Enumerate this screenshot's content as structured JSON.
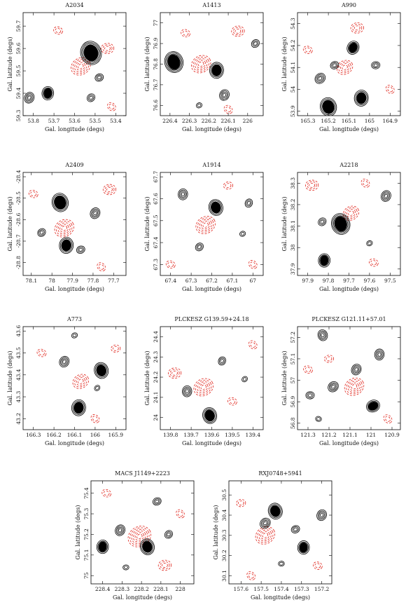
{
  "figure": {
    "colors": {
      "positive_contour": "#000000",
      "negative_contour": "#e0261d",
      "frame": "#000000"
    }
  },
  "chart_data": [
    {
      "type": "contour",
      "title": "A2034",
      "xlabel": "Gal. longitude (degs)",
      "ylabel": "Gal. latitude (degs)",
      "xticks": [
        "53.8",
        "53.7",
        "53.6",
        "53.5",
        "53.4"
      ],
      "yticks": [
        "59.3",
        "59.4",
        "59.5",
        "59.6",
        "59.7"
      ],
      "xlim": [
        53.85,
        53.35
      ],
      "ylim": [
        59.3,
        59.76
      ],
      "positive_peaks": [
        [
          53.52,
          59.58,
          9
        ],
        [
          53.73,
          59.4,
          5
        ],
        [
          53.82,
          59.38,
          4
        ],
        [
          53.52,
          59.38,
          3
        ],
        [
          53.48,
          59.47,
          3
        ]
      ],
      "negative_peaks": [
        [
          53.57,
          59.52,
          5
        ],
        [
          53.44,
          59.6,
          3
        ],
        [
          53.68,
          59.68,
          2
        ],
        [
          53.42,
          59.34,
          2
        ]
      ]
    },
    {
      "type": "contour",
      "title": "A1413",
      "xlabel": "Gal. longitude (degs)",
      "ylabel": "Gal. latitude (degs)",
      "xticks": [
        "226.4",
        "226.3",
        "226.2",
        "226.1",
        "226"
      ],
      "yticks": [
        "76.6",
        "76.7",
        "76.8",
        "76.9",
        "77"
      ],
      "xlim": [
        226.45,
        225.92
      ],
      "ylim": [
        76.55,
        77.05
      ],
      "positive_peaks": [
        [
          226.38,
          76.81,
          8
        ],
        [
          226.16,
          76.77,
          6
        ],
        [
          226.12,
          76.65,
          4
        ],
        [
          225.96,
          76.9,
          3
        ],
        [
          226.25,
          76.6,
          2
        ]
      ],
      "negative_peaks": [
        [
          226.24,
          76.8,
          5
        ],
        [
          226.05,
          76.96,
          3
        ],
        [
          226.32,
          76.95,
          2
        ],
        [
          226.1,
          76.58,
          2
        ]
      ]
    },
    {
      "type": "contour",
      "title": "A990",
      "xlabel": "Gal. longitude (degs)",
      "ylabel": "Gal. latitude (degs)",
      "xticks": [
        "165.3",
        "165.2",
        "165.1",
        "165",
        "164.9"
      ],
      "yticks": [
        "53.9",
        "54",
        "54.1",
        "54.2",
        "54.3"
      ],
      "xlim": [
        165.35,
        164.85
      ],
      "ylim": [
        53.88,
        54.35
      ],
      "positive_peaks": [
        [
          165.2,
          53.92,
          7
        ],
        [
          165.04,
          53.96,
          6
        ],
        [
          165.08,
          54.19,
          5
        ],
        [
          165.24,
          54.05,
          4
        ],
        [
          165.17,
          54.11,
          3
        ],
        [
          164.97,
          54.11,
          3
        ]
      ],
      "negative_peaks": [
        [
          165.12,
          54.1,
          4
        ],
        [
          165.06,
          54.28,
          3
        ],
        [
          165.3,
          54.18,
          2
        ],
        [
          164.9,
          54.0,
          2
        ]
      ]
    },
    {
      "type": "contour",
      "title": "A2409",
      "xlabel": "Gal. longitude (degs)",
      "ylabel": "Gal. latitude (degs)",
      "xticks": [
        "78.1",
        "78",
        "77.9",
        "77.8",
        "77.7"
      ],
      "yticks": [
        "-28.8",
        "-28.7",
        "-28.6",
        "-28.5",
        "-28.4"
      ],
      "xlim": [
        78.14,
        77.64
      ],
      "ylim": [
        -28.86,
        -28.38
      ],
      "positive_peaks": [
        [
          77.96,
          -28.52,
          7
        ],
        [
          77.93,
          -28.72,
          6
        ],
        [
          77.79,
          -28.57,
          4
        ],
        [
          78.05,
          -28.66,
          3
        ],
        [
          77.86,
          -28.74,
          3
        ]
      ],
      "negative_peaks": [
        [
          77.94,
          -28.64,
          5
        ],
        [
          77.72,
          -28.46,
          3
        ],
        [
          78.09,
          -28.48,
          2
        ],
        [
          77.76,
          -28.82,
          2
        ]
      ]
    },
    {
      "type": "contour",
      "title": "A1914",
      "xlabel": "Gal. longitude (degs)",
      "ylabel": "Gal. latitude (degs)",
      "xticks": [
        "67.4",
        "67.3",
        "67.2",
        "67.1",
        "67"
      ],
      "yticks": [
        "67.3",
        "67.4",
        "67.5",
        "67.6",
        "67.7"
      ],
      "xlim": [
        67.45,
        66.95
      ],
      "ylim": [
        67.25,
        67.72
      ],
      "positive_peaks": [
        [
          67.18,
          67.56,
          6
        ],
        [
          67.34,
          67.62,
          4
        ],
        [
          67.02,
          67.58,
          3
        ],
        [
          67.26,
          67.38,
          3
        ],
        [
          67.05,
          67.44,
          2
        ]
      ],
      "negative_peaks": [
        [
          67.23,
          67.48,
          5
        ],
        [
          67.12,
          67.66,
          2
        ],
        [
          67.4,
          67.3,
          2
        ],
        [
          67.0,
          67.3,
          2
        ]
      ]
    },
    {
      "type": "contour",
      "title": "A2218",
      "xlabel": "Gal. longitude (degs)",
      "ylabel": "Gal. latitude (degs)",
      "xticks": [
        "97.9",
        "97.8",
        "97.7",
        "97.6",
        "97.5"
      ],
      "yticks": [
        "37.9",
        "38",
        "38.1",
        "38.2",
        "38.3"
      ],
      "xlim": [
        97.95,
        97.45
      ],
      "ylim": [
        37.87,
        38.35
      ],
      "positive_peaks": [
        [
          97.74,
          38.11,
          8
        ],
        [
          97.82,
          37.94,
          5
        ],
        [
          97.52,
          38.24,
          4
        ],
        [
          97.83,
          38.12,
          3
        ],
        [
          97.6,
          38.02,
          2
        ]
      ],
      "negative_peaks": [
        [
          97.69,
          38.16,
          4
        ],
        [
          97.88,
          38.29,
          3
        ],
        [
          97.58,
          37.93,
          2
        ],
        [
          97.62,
          38.3,
          2
        ]
      ]
    },
    {
      "type": "contour",
      "title": "A773",
      "xlabel": "Gal. longitude (degs)",
      "ylabel": "Gal. latitude (degs)",
      "xticks": [
        "166.3",
        "166.2",
        "166.1",
        "166",
        "165.9"
      ],
      "yticks": [
        "43.2",
        "43.3",
        "43.4",
        "43.5",
        "43.6"
      ],
      "xlim": [
        166.35,
        165.85
      ],
      "ylim": [
        43.15,
        43.62
      ],
      "positive_peaks": [
        [
          165.97,
          43.42,
          6
        ],
        [
          166.08,
          43.25,
          6
        ],
        [
          166.15,
          43.46,
          4
        ],
        [
          165.99,
          43.34,
          2
        ],
        [
          166.1,
          43.58,
          2
        ]
      ],
      "negative_peaks": [
        [
          166.07,
          43.37,
          4
        ],
        [
          165.9,
          43.52,
          2
        ],
        [
          166.26,
          43.5,
          2
        ],
        [
          166.0,
          43.2,
          2
        ]
      ]
    },
    {
      "type": "contour",
      "title": "PLCKESZ G139.59+24.18",
      "xlabel": "Gal. longitude (degs)",
      "ylabel": "Gal. latitude (degs)",
      "xticks": [
        "139.8",
        "139.7",
        "139.6",
        "139.5",
        "139.4"
      ],
      "yticks": [
        "24",
        "24.1",
        "24.2",
        "24.3",
        "24.4"
      ],
      "xlim": [
        139.85,
        139.35
      ],
      "ylim": [
        23.94,
        24.45
      ],
      "positive_peaks": [
        [
          139.61,
          24.01,
          6
        ],
        [
          139.72,
          24.13,
          4
        ],
        [
          139.55,
          24.28,
          3
        ],
        [
          139.44,
          24.19,
          2
        ]
      ],
      "negative_peaks": [
        [
          139.64,
          24.15,
          5
        ],
        [
          139.78,
          24.22,
          3
        ],
        [
          139.5,
          24.08,
          2
        ],
        [
          139.4,
          24.36,
          2
        ]
      ]
    },
    {
      "type": "contour",
      "title": "PLCKESZ G121.11+57.01",
      "xlabel": "Gal. longitude (degs)",
      "ylabel": "Gal. latitude (degs)",
      "xticks": [
        "121.3",
        "121.2",
        "121.1",
        "121",
        "120.9"
      ],
      "yticks": [
        "56.8",
        "56.9",
        "57",
        "57.1",
        "57.2"
      ],
      "xlim": [
        121.35,
        120.86
      ],
      "ylim": [
        56.77,
        57.25
      ],
      "positive_peaks": [
        [
          121.23,
          57.21,
          4
        ],
        [
          120.96,
          57.12,
          4
        ],
        [
          121.07,
          57.05,
          4
        ],
        [
          121.18,
          56.97,
          4
        ],
        [
          120.99,
          56.88,
          5
        ],
        [
          121.29,
          56.93,
          3
        ],
        [
          121.25,
          56.82,
          2
        ]
      ],
      "negative_peaks": [
        [
          121.08,
          56.97,
          5
        ],
        [
          121.2,
          57.1,
          2
        ],
        [
          121.3,
          57.05,
          2
        ],
        [
          120.92,
          56.82,
          2
        ]
      ]
    },
    {
      "type": "contour",
      "title": "MACS J1149+2223",
      "xlabel": "Gal. longitude (degs)",
      "ylabel": "Gal. latitude (degs)",
      "xticks": [
        "228.4",
        "228.3",
        "228.2",
        "228.1",
        "228"
      ],
      "yticks": [
        "75",
        "75.1",
        "75.2",
        "75.3",
        "75.4"
      ],
      "xlim": [
        228.46,
        227.93
      ],
      "ylim": [
        74.96,
        75.46
      ],
      "positive_peaks": [
        [
          228.17,
          75.14,
          6
        ],
        [
          228.4,
          75.14,
          5
        ],
        [
          228.31,
          75.22,
          4
        ],
        [
          228.06,
          75.2,
          3
        ],
        [
          228.12,
          75.36,
          3
        ],
        [
          228.28,
          75.04,
          2
        ]
      ],
      "negative_peaks": [
        [
          228.21,
          75.19,
          6
        ],
        [
          228.08,
          75.05,
          3
        ],
        [
          228.38,
          75.4,
          2
        ],
        [
          228.0,
          75.3,
          2
        ]
      ]
    },
    {
      "type": "contour",
      "title": "RXJ0748+5941",
      "xlabel": "Gal. longitude (degs)",
      "ylabel": "Gal. latitude (degs)",
      "xticks": [
        "157.6",
        "157.5",
        "157.4",
        "157.3",
        "157.2"
      ],
      "yticks": [
        "30.1",
        "30.2",
        "30.3",
        "30.4",
        "30.5"
      ],
      "xlim": [
        157.66,
        157.15
      ],
      "ylim": [
        30.06,
        30.57
      ],
      "positive_peaks": [
        [
          157.43,
          30.42,
          6
        ],
        [
          157.29,
          30.24,
          5
        ],
        [
          157.2,
          30.4,
          4
        ],
        [
          157.48,
          30.36,
          4
        ],
        [
          157.33,
          30.33,
          3
        ],
        [
          157.4,
          30.16,
          2
        ]
      ],
      "negative_peaks": [
        [
          157.48,
          30.3,
          5
        ],
        [
          157.6,
          30.46,
          2
        ],
        [
          157.22,
          30.15,
          2
        ],
        [
          157.55,
          30.1,
          2
        ]
      ]
    }
  ]
}
